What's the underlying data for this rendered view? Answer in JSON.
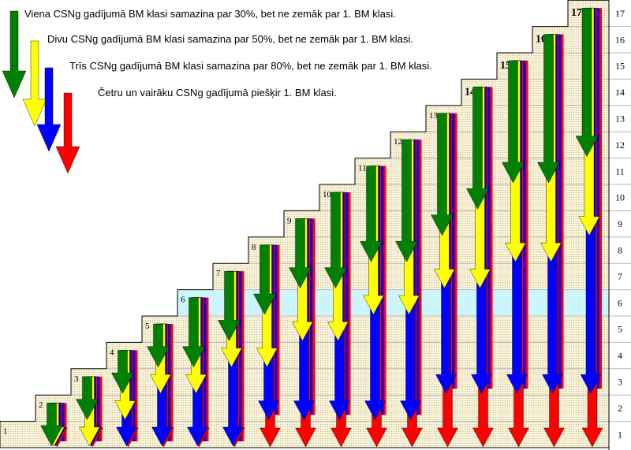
{
  "rules": [
    "Viena CSNg gadījumā BM klasi samazina par 30%, bet ne zemāk par 1. BM klasi.",
    "Divu CSNg gadījumā BM klasi samazina par 50%, bet ne zemāk par 1. BM klasi.",
    "Trīs CSNg gadījumā BM klasi samazina par 80%, bet ne zemāk par 1. BM klasi.",
    "Četru un vairāku CSNg gadījumā piešķir 1. BM klasi."
  ],
  "legend": [
    {
      "name": "green-legend-arrow",
      "color": "#008000"
    },
    {
      "name": "yellow-legend-arrow",
      "color": "#FFFF00"
    },
    {
      "name": "blue-legend-arrow",
      "color": "#0000FF"
    },
    {
      "name": "red-legend-arrow",
      "color": "#FF0000"
    }
  ],
  "colors": {
    "green": "#008000",
    "yellow": "#FFFF00",
    "blue": "#0000FF",
    "red": "#FF0000",
    "step_fill": "#F7F1D8",
    "highlight_band": "#CCF5FC",
    "grid": "#B8B8B8"
  },
  "class_axis": [
    "1",
    "2",
    "3",
    "4",
    "5",
    "6",
    "7",
    "8",
    "9",
    "10",
    "11",
    "12",
    "13",
    "14",
    "15",
    "16",
    "17"
  ],
  "highlight_class": 6,
  "columns": [
    {
      "label": "1",
      "green": null,
      "yellow": null,
      "blue": null,
      "red": null
    },
    {
      "label": "2",
      "green": 1,
      "yellow": 1,
      "blue": 1,
      "red": 1
    },
    {
      "label": "3",
      "green": 2,
      "yellow": 1,
      "blue": 1,
      "red": 1
    },
    {
      "label": "4",
      "green": 3,
      "yellow": 2,
      "blue": 1,
      "red": 1
    },
    {
      "label": "5",
      "green": 4,
      "yellow": 3,
      "blue": 1,
      "red": 1
    },
    {
      "label": "6",
      "green": 4,
      "yellow": 3,
      "blue": 1,
      "red": 1
    },
    {
      "label": "7",
      "green": 5,
      "yellow": 4,
      "blue": 1,
      "red": 1
    },
    {
      "label": "8",
      "green": 6,
      "yellow": 4,
      "blue": 2,
      "red": 1
    },
    {
      "label": "9",
      "green": 7,
      "yellow": 5,
      "blue": 2,
      "red": 1
    },
    {
      "label": "10",
      "green": 7,
      "yellow": 5,
      "blue": 2,
      "red": 1
    },
    {
      "label": "11",
      "green": 8,
      "yellow": 6,
      "blue": 2,
      "red": 1
    },
    {
      "label": "12",
      "green": 8,
      "yellow": 6,
      "blue": 2,
      "red": 1
    },
    {
      "label": "13",
      "green": 9,
      "yellow": 7,
      "blue": 3,
      "red": 1
    },
    {
      "label": "14",
      "green": 10,
      "yellow": 7,
      "blue": 3,
      "red": 1
    },
    {
      "label": "15",
      "green": 11,
      "yellow": 8,
      "blue": 3,
      "red": 1
    },
    {
      "label": "16",
      "green": 11,
      "yellow": 8,
      "blue": 3,
      "red": 1
    },
    {
      "label": "17",
      "green": 12,
      "yellow": 9,
      "blue": 3,
      "red": 1
    }
  ]
}
